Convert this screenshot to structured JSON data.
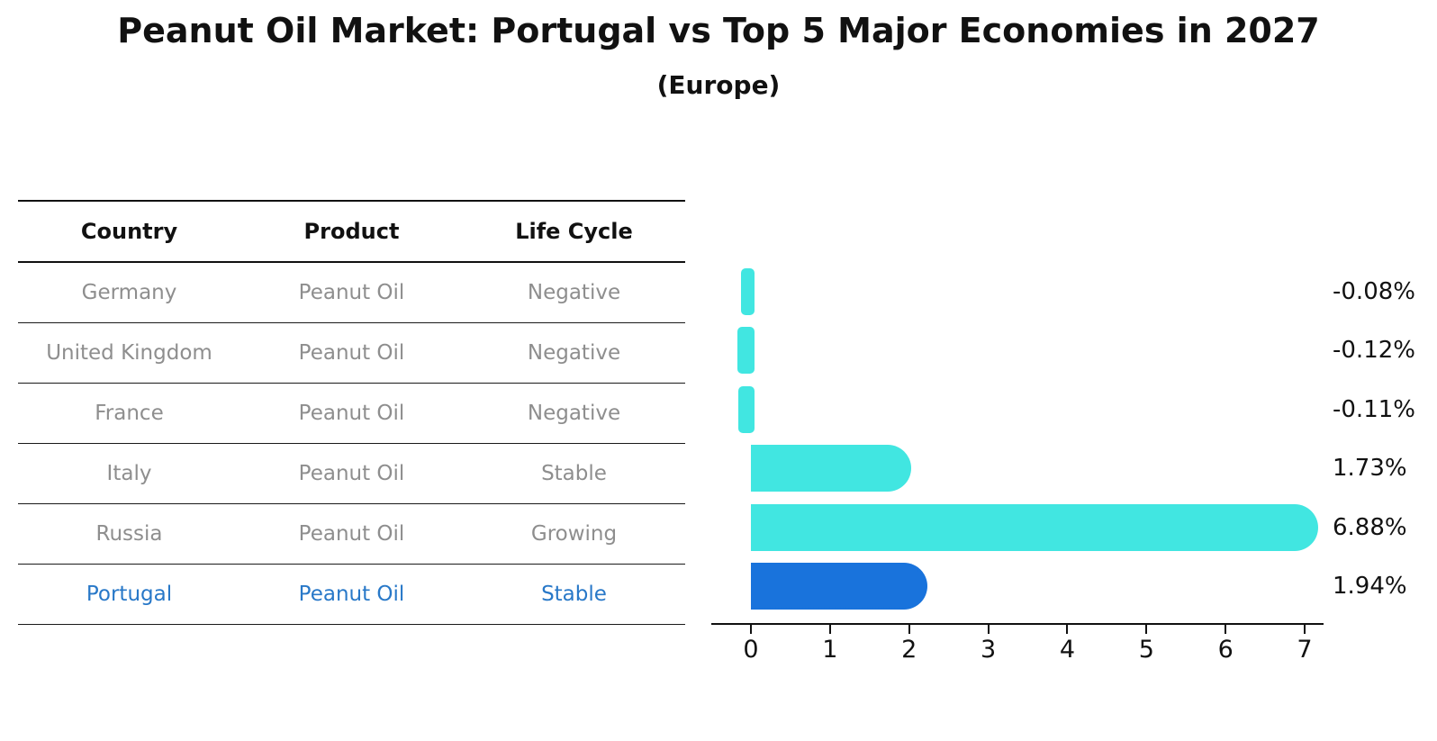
{
  "title": "Peanut Oil Market: Portugal vs Top 5 Major Economies in 2027",
  "subtitle": "(Europe)",
  "table": {
    "headers": [
      "Country",
      "Product",
      "Life Cycle"
    ],
    "rows": [
      {
        "country": "Germany",
        "product": "Peanut Oil",
        "life_cycle": "Negative"
      },
      {
        "country": "United Kingdom",
        "product": "Peanut Oil",
        "life_cycle": "Negative"
      },
      {
        "country": "France",
        "product": "Peanut Oil",
        "life_cycle": "Negative"
      },
      {
        "country": "Italy",
        "product": "Peanut Oil",
        "life_cycle": "Stable"
      },
      {
        "country": "Russia",
        "product": "Peanut Oil",
        "life_cycle": "Growing"
      },
      {
        "country": "Portugal",
        "product": "Peanut Oil",
        "life_cycle": "Stable"
      }
    ]
  },
  "chart_data": {
    "type": "bar",
    "orientation": "horizontal",
    "title": "Peanut Oil Market: Portugal vs Top 5 Major Economies in 2027 (Europe)",
    "categories": [
      "Germany",
      "United Kingdom",
      "France",
      "Italy",
      "Russia",
      "Portugal"
    ],
    "values": [
      -0.08,
      -0.12,
      -0.11,
      1.73,
      6.88,
      1.94
    ],
    "value_labels": [
      "-0.08%",
      "-0.12%",
      "-0.11%",
      "1.73%",
      "6.88%",
      "1.94%"
    ],
    "xticks": [
      0,
      1,
      2,
      3,
      4,
      5,
      6,
      7
    ],
    "xlim": [
      -0.5,
      7.25
    ],
    "grid": false,
    "legend": "none",
    "bar_color": "#41e6e1",
    "highlight_color": "#1973dc",
    "highlight_index": 5,
    "highlight_text_color": "#2878c8"
  }
}
